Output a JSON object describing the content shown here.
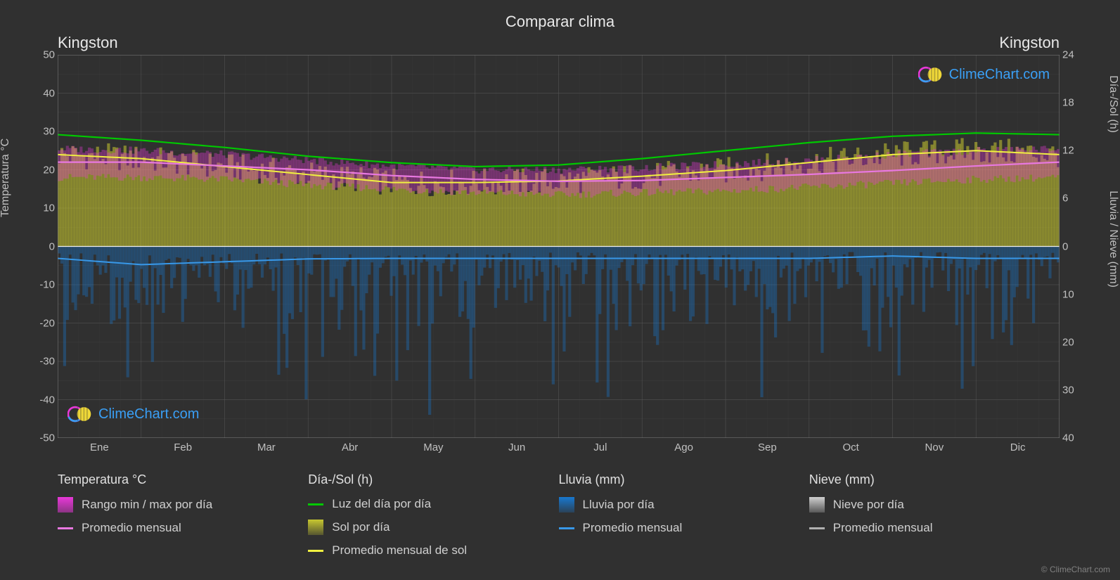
{
  "title": "Comparar clima",
  "location_left": "Kingston",
  "location_right": "Kingston",
  "watermark_text": "ClimeChart.com",
  "copyright": "© ClimeChart.com",
  "axes": {
    "y_left_label": "Temperatura °C",
    "y_right_top_label": "Día-/Sol (h)",
    "y_right_bottom_label": "Lluvia / Nieve (mm)",
    "y_left_ticks": [
      50,
      40,
      30,
      20,
      10,
      0,
      -10,
      -20,
      -30,
      -40,
      -50
    ],
    "y_right_top_ticks": [
      24,
      18,
      12,
      6,
      0
    ],
    "y_right_bottom_ticks": [
      0,
      10,
      20,
      30,
      40
    ],
    "x_ticks": [
      "Ene",
      "Feb",
      "Mar",
      "Abr",
      "May",
      "Jun",
      "Jul",
      "Ago",
      "Sep",
      "Oct",
      "Nov",
      "Dic"
    ]
  },
  "colors": {
    "background": "#303030",
    "plot_bg": "#303030",
    "grid": "#606060",
    "grid_minor": "#484848",
    "text": "#e0e0e0",
    "temp_range": "#e838d8",
    "temp_avg": "#e878e0",
    "daylight": "#00c800",
    "sun_fill": "#c8c830",
    "sun_avg": "#f0f040",
    "rain_fill": "#1878d0",
    "rain_avg": "#3898e8",
    "snow_fill": "#d0d0d0",
    "snow_avg": "#b0b0b0",
    "watermark_text": "#3a9ff5"
  },
  "plot": {
    "temp_ylim": [
      -50,
      50
    ],
    "daysol_ylim": [
      0,
      24
    ],
    "precip_ylim": [
      0,
      40
    ],
    "daylight_monthly": [
      14.0,
      13.3,
      12.4,
      11.3,
      10.5,
      10.0,
      10.2,
      11.0,
      12.0,
      13.0,
      13.8,
      14.2
    ],
    "sun_avg_monthly": [
      11.5,
      11.0,
      10.0,
      9.0,
      8.0,
      8.0,
      8.2,
      8.8,
      9.5,
      10.5,
      11.5,
      12.0
    ],
    "temp_avg_monthly": [
      22.0,
      22.0,
      21.0,
      20.0,
      18.5,
      17.5,
      17.0,
      17.2,
      18.0,
      18.8,
      19.8,
      21.0
    ],
    "rain_avg_monthly": [
      2.5,
      3.8,
      3.2,
      2.6,
      2.5,
      2.5,
      2.5,
      2.5,
      2.5,
      2.5,
      2.0,
      2.5
    ],
    "sun_daily_fill": [
      11.5,
      11.0,
      10.0,
      9.0,
      8.0,
      8.0,
      8.2,
      8.8,
      9.5,
      10.5,
      11.5,
      12.0
    ],
    "temp_range_min_monthly": [
      18.0,
      18.0,
      17.5,
      16.0,
      15.0,
      14.0,
      13.5,
      14.0,
      14.5,
      15.5,
      16.5,
      17.5
    ],
    "temp_range_max_monthly": [
      25.5,
      25.0,
      24.0,
      22.5,
      21.0,
      20.0,
      20.0,
      20.5,
      21.5,
      22.5,
      24.0,
      25.0
    ]
  },
  "legend": {
    "temp_header": "Temperatura °C",
    "temp_range": "Rango min / max por día",
    "temp_avg": "Promedio mensual",
    "daysol_header": "Día-/Sol (h)",
    "daylight": "Luz del día por día",
    "sun_fill": "Sol por día",
    "sun_avg": "Promedio mensual de sol",
    "rain_header": "Lluvia (mm)",
    "rain_fill": "Lluvia por día",
    "rain_avg": "Promedio mensual",
    "snow_header": "Nieve (mm)",
    "snow_fill": "Nieve por día",
    "snow_avg": "Promedio mensual"
  }
}
